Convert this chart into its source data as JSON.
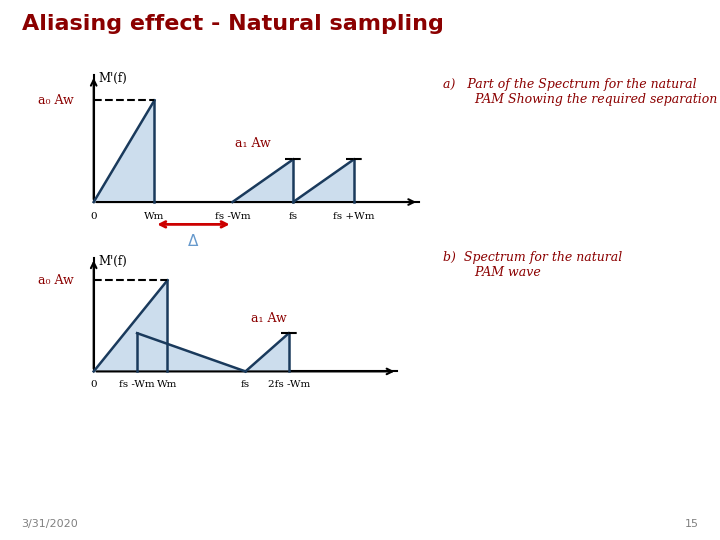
{
  "title": "Aliasing effect - Natural sampling",
  "title_color": "#8B0000",
  "title_fontsize": 16,
  "bg_color": "#FFFFFF",
  "chart_a_label": "M'(f)",
  "chart_b_label": "M'(f)",
  "a0_aw_label": "a₀ Aw",
  "a1_aw_label": "a₁ Aw",
  "annotation_a": "a)   Part of the Spectrum for the natural\n        PAM Showing the required separation",
  "annotation_b": "b)  Spectrum for the natural\n        PAM wave",
  "annotation_color": "#8B0000",
  "date_label": "3/31/2020",
  "page_num": "15",
  "fill_color": "#ccdded",
  "line_color": "#1a3a5c",
  "arrow_color": "#CC0000",
  "delta_color": "#6699CC",
  "xticks_a": [
    "0",
    "Wm",
    "fs -Wm",
    "fs",
    "fs +Wm"
  ],
  "xticks_b": [
    "0",
    "fs -Wm",
    "Wm",
    "fs",
    "2fs -Wm"
  ]
}
